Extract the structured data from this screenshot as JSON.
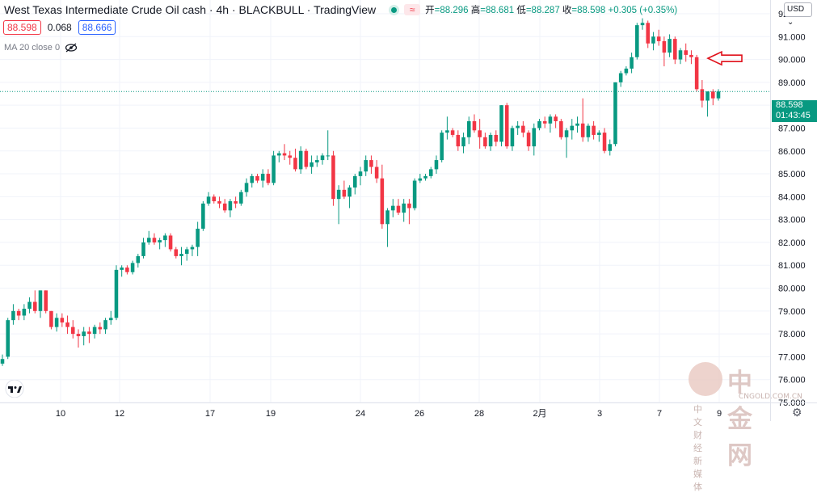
{
  "header": {
    "title": "West Texas Intermediate Crude Oil cash · 4h · BLACKBULL · TradingView",
    "wave_icon": "≈",
    "ohlc": [
      {
        "k": "开",
        "v": "=88.296"
      },
      {
        "k": "高",
        "v": "=88.681"
      },
      {
        "k": "低",
        "v": "=88.287"
      },
      {
        "k": "收",
        "v": "=88.598"
      },
      {
        "k": "",
        "v": "+0.305 (+0.35%)"
      }
    ]
  },
  "prices": {
    "sell": "88.598",
    "spread": "0.068",
    "buy": "88.666"
  },
  "indicator": {
    "label": "MA 20 close 0"
  },
  "currency": "USD",
  "last_price": {
    "value": "88.598",
    "countdown": "01:43:45"
  },
  "watermark": {
    "main": "中金网",
    "sub": "CNGOLD.COM.CN",
    "cn": "中文财经新媒体"
  },
  "colors": {
    "up": "#089981",
    "down": "#f23645",
    "grid": "#f0f3fa",
    "axis": "#131722",
    "arrow": "#e0111b"
  },
  "chart_data": {
    "type": "candlestick",
    "y_axis_labels": [
      "92.000",
      "91.000",
      "90.000",
      "89.000",
      "88.000",
      "87.000",
      "86.000",
      "85.000",
      "84.000",
      "83.000",
      "82.000",
      "81.000",
      "80.000",
      "79.000",
      "78.000",
      "77.000",
      "76.000",
      "75.000"
    ],
    "ylim": [
      75,
      92.6
    ],
    "x_tick_labels": [
      "10",
      "12",
      "17",
      "19",
      "24",
      "26",
      "28",
      "2月",
      "3",
      "7",
      "9"
    ],
    "annotation": "red arrow pointing left at latest highs",
    "candles": [
      [
        76.7,
        77.1,
        76.6,
        76.9
      ],
      [
        77.0,
        78.7,
        76.9,
        78.6
      ],
      [
        78.6,
        79.3,
        78.4,
        79.0
      ],
      [
        79.0,
        79.1,
        78.6,
        78.8
      ],
      [
        78.8,
        79.3,
        78.6,
        79.1
      ],
      [
        79.1,
        79.6,
        78.9,
        79.4
      ],
      [
        79.4,
        79.9,
        78.9,
        79.0
      ],
      [
        79.0,
        79.9,
        78.7,
        79.9
      ],
      [
        79.9,
        79.9,
        78.9,
        79.0
      ],
      [
        79.0,
        79.0,
        78.2,
        78.3
      ],
      [
        78.3,
        78.9,
        78.1,
        78.7
      ],
      [
        78.7,
        78.9,
        78.3,
        78.5
      ],
      [
        78.5,
        78.8,
        78.0,
        78.3
      ],
      [
        78.3,
        78.6,
        77.8,
        78.0
      ],
      [
        78.0,
        78.2,
        77.4,
        77.9
      ],
      [
        77.9,
        78.3,
        77.5,
        78.1
      ],
      [
        78.1,
        78.3,
        77.6,
        78.0
      ],
      [
        78.0,
        78.4,
        77.8,
        78.3
      ],
      [
        78.3,
        78.5,
        78.0,
        78.2
      ],
      [
        78.2,
        78.7,
        78.0,
        78.6
      ],
      [
        78.6,
        79.0,
        78.4,
        78.7
      ],
      [
        78.7,
        81.0,
        78.6,
        80.8
      ],
      [
        80.8,
        81.0,
        80.5,
        80.9
      ],
      [
        80.9,
        81.0,
        80.6,
        80.7
      ],
      [
        80.7,
        81.2,
        80.6,
        81.1
      ],
      [
        81.1,
        81.5,
        80.9,
        81.4
      ],
      [
        81.4,
        82.2,
        81.3,
        82.0
      ],
      [
        82.0,
        82.5,
        81.9,
        82.2
      ],
      [
        82.2,
        82.4,
        81.9,
        82.0
      ],
      [
        82.0,
        82.2,
        81.7,
        82.1
      ],
      [
        82.1,
        82.4,
        81.8,
        82.3
      ],
      [
        82.3,
        82.4,
        81.6,
        81.7
      ],
      [
        81.7,
        81.8,
        81.3,
        81.4
      ],
      [
        81.4,
        81.8,
        81.0,
        81.5
      ],
      [
        81.5,
        81.8,
        81.2,
        81.7
      ],
      [
        81.7,
        81.9,
        81.4,
        81.8
      ],
      [
        81.8,
        82.9,
        81.4,
        82.6
      ],
      [
        82.6,
        83.8,
        82.5,
        83.7
      ],
      [
        83.7,
        84.2,
        83.6,
        84.0
      ],
      [
        84.0,
        84.1,
        83.7,
        83.8
      ],
      [
        83.8,
        84.0,
        83.5,
        83.7
      ],
      [
        83.7,
        83.9,
        83.3,
        83.4
      ],
      [
        83.4,
        83.9,
        83.1,
        83.8
      ],
      [
        83.8,
        84.0,
        83.5,
        83.7
      ],
      [
        83.7,
        84.3,
        83.6,
        84.2
      ],
      [
        84.2,
        84.8,
        84.0,
        84.6
      ],
      [
        84.6,
        85.0,
        84.4,
        84.9
      ],
      [
        84.9,
        85.0,
        84.6,
        84.7
      ],
      [
        84.7,
        85.2,
        84.4,
        85.0
      ],
      [
        85.0,
        85.2,
        84.5,
        84.6
      ],
      [
        84.6,
        86.0,
        84.5,
        85.8
      ],
      [
        85.8,
        86.0,
        85.5,
        85.9
      ],
      [
        85.9,
        86.3,
        85.6,
        85.8
      ],
      [
        85.8,
        86.0,
        85.4,
        85.7
      ],
      [
        85.7,
        86.1,
        85.1,
        85.2
      ],
      [
        85.2,
        86.2,
        85.0,
        86.0
      ],
      [
        86.0,
        86.1,
        85.2,
        85.3
      ],
      [
        85.3,
        85.8,
        85.0,
        85.5
      ],
      [
        85.5,
        85.8,
        85.3,
        85.6
      ],
      [
        85.6,
        85.9,
        85.4,
        85.8
      ],
      [
        85.8,
        86.9,
        85.6,
        85.8
      ],
      [
        85.8,
        86.0,
        83.6,
        83.9
      ],
      [
        83.9,
        84.5,
        82.8,
        84.3
      ],
      [
        84.3,
        84.7,
        83.9,
        84.0
      ],
      [
        84.0,
        84.5,
        83.5,
        84.4
      ],
      [
        84.4,
        85.0,
        84.1,
        84.9
      ],
      [
        84.9,
        85.3,
        84.5,
        85.1
      ],
      [
        85.1,
        85.8,
        84.9,
        85.6
      ],
      [
        85.6,
        85.8,
        85.0,
        85.3
      ],
      [
        85.3,
        85.6,
        84.6,
        84.8
      ],
      [
        84.8,
        85.4,
        82.6,
        82.8
      ],
      [
        82.8,
        83.5,
        81.8,
        83.4
      ],
      [
        83.4,
        83.9,
        83.1,
        83.6
      ],
      [
        83.6,
        83.9,
        83.2,
        83.3
      ],
      [
        83.3,
        83.9,
        82.9,
        83.7
      ],
      [
        83.7,
        83.9,
        82.8,
        83.5
      ],
      [
        83.5,
        84.8,
        83.4,
        84.7
      ],
      [
        84.7,
        85.0,
        84.6,
        84.8
      ],
      [
        84.8,
        85.0,
        84.7,
        84.9
      ],
      [
        84.9,
        85.3,
        84.8,
        85.2
      ],
      [
        85.2,
        85.8,
        85.0,
        85.6
      ],
      [
        85.6,
        86.9,
        85.5,
        86.8
      ],
      [
        86.8,
        87.5,
        86.5,
        86.9
      ],
      [
        86.9,
        87.0,
        86.6,
        86.7
      ],
      [
        86.7,
        86.9,
        86.0,
        86.2
      ],
      [
        86.2,
        86.8,
        85.9,
        86.6
      ],
      [
        86.6,
        87.5,
        86.3,
        87.3
      ],
      [
        87.3,
        87.6,
        86.8,
        86.9
      ],
      [
        86.9,
        87.4,
        86.1,
        86.6
      ],
      [
        86.6,
        86.8,
        86.1,
        86.2
      ],
      [
        86.2,
        86.8,
        86.0,
        86.7
      ],
      [
        86.7,
        86.9,
        86.2,
        86.4
      ],
      [
        86.4,
        88.0,
        86.2,
        88.0
      ],
      [
        88.0,
        88.1,
        86.1,
        86.2
      ],
      [
        86.2,
        87.1,
        86.0,
        87.0
      ],
      [
        87.0,
        87.3,
        86.7,
        87.1
      ],
      [
        87.1,
        87.3,
        86.6,
        86.8
      ],
      [
        86.8,
        86.9,
        86.0,
        86.2
      ],
      [
        86.2,
        87.2,
        85.8,
        87.0
      ],
      [
        87.0,
        87.4,
        86.9,
        87.3
      ],
      [
        87.3,
        87.5,
        87.0,
        87.2
      ],
      [
        87.2,
        87.6,
        86.8,
        87.5
      ],
      [
        87.5,
        87.6,
        87.0,
        87.3
      ],
      [
        87.3,
        87.4,
        86.5,
        86.6
      ],
      [
        86.6,
        87.0,
        85.7,
        86.9
      ],
      [
        86.9,
        87.4,
        86.5,
        87.1
      ],
      [
        87.1,
        87.5,
        86.8,
        87.2
      ],
      [
        87.2,
        88.3,
        86.4,
        86.6
      ],
      [
        86.6,
        87.2,
        86.4,
        87.1
      ],
      [
        87.1,
        87.3,
        86.5,
        86.7
      ],
      [
        86.7,
        86.9,
        86.4,
        86.8
      ],
      [
        86.8,
        87.0,
        85.9,
        86.0
      ],
      [
        86.0,
        86.5,
        85.8,
        86.3
      ],
      [
        86.3,
        89.0,
        86.2,
        89.0
      ],
      [
        89.0,
        89.5,
        88.8,
        89.4
      ],
      [
        89.4,
        89.7,
        89.3,
        89.6
      ],
      [
        89.6,
        90.3,
        89.4,
        90.1
      ],
      [
        90.1,
        91.6,
        90.0,
        91.5
      ],
      [
        91.5,
        91.8,
        91.3,
        91.6
      ],
      [
        91.6,
        91.7,
        90.5,
        90.7
      ],
      [
        90.7,
        91.2,
        90.4,
        91.0
      ],
      [
        91.0,
        91.3,
        90.6,
        90.8
      ],
      [
        90.8,
        91.0,
        89.7,
        90.3
      ],
      [
        90.3,
        91.1,
        90.1,
        90.9
      ],
      [
        90.9,
        91.0,
        89.8,
        90.0
      ],
      [
        90.0,
        90.5,
        89.8,
        90.4
      ],
      [
        90.4,
        90.7,
        89.9,
        90.2
      ],
      [
        90.2,
        90.4,
        89.8,
        90.1
      ],
      [
        90.1,
        90.2,
        88.6,
        88.7
      ],
      [
        88.7,
        89.1,
        87.9,
        88.2
      ],
      [
        88.2,
        88.6,
        87.5,
        88.6
      ],
      [
        88.6,
        88.7,
        88.0,
        88.3
      ],
      [
        88.3,
        88.7,
        88.2,
        88.6
      ]
    ]
  }
}
